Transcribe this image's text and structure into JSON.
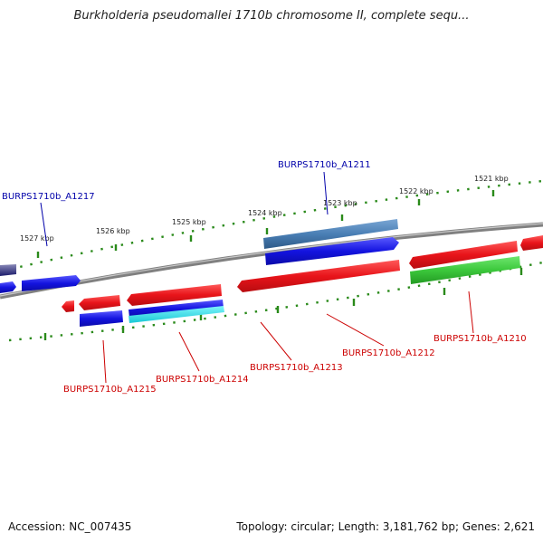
{
  "title": "Burkholderia pseudomallei 1710b chromosome II, complete sequ...",
  "footer": {
    "accession": "Accession: NC_007435",
    "topology": "Topology: circular; Length: 3,181,762 bp; Genes: 2,621"
  },
  "kbp_ticks": [
    "1521 kbp",
    "1522 kbp",
    "1523 kbp",
    "1524 kbp",
    "1525 kbp",
    "1526 kbp",
    "1527 kbp"
  ],
  "gene_labels": [
    "BURPS1710b_A1211",
    "BURPS1710b_A1217",
    "BURPS1710b_A1210",
    "BURPS1710b_A1212",
    "BURPS1710b_A1213",
    "BURPS1710b_A1214",
    "BURPS1710b_A1215"
  ],
  "colors": {
    "red": "#e8141a",
    "blue": "#1414e0",
    "steel_blue": "#4a7fb5",
    "green": "#3cc83c",
    "cyan": "#19e6f0",
    "tick_green": "#2a8a1a",
    "backbone": "#808080",
    "label_red": "#cc0000",
    "label_blue": "#0000aa"
  }
}
